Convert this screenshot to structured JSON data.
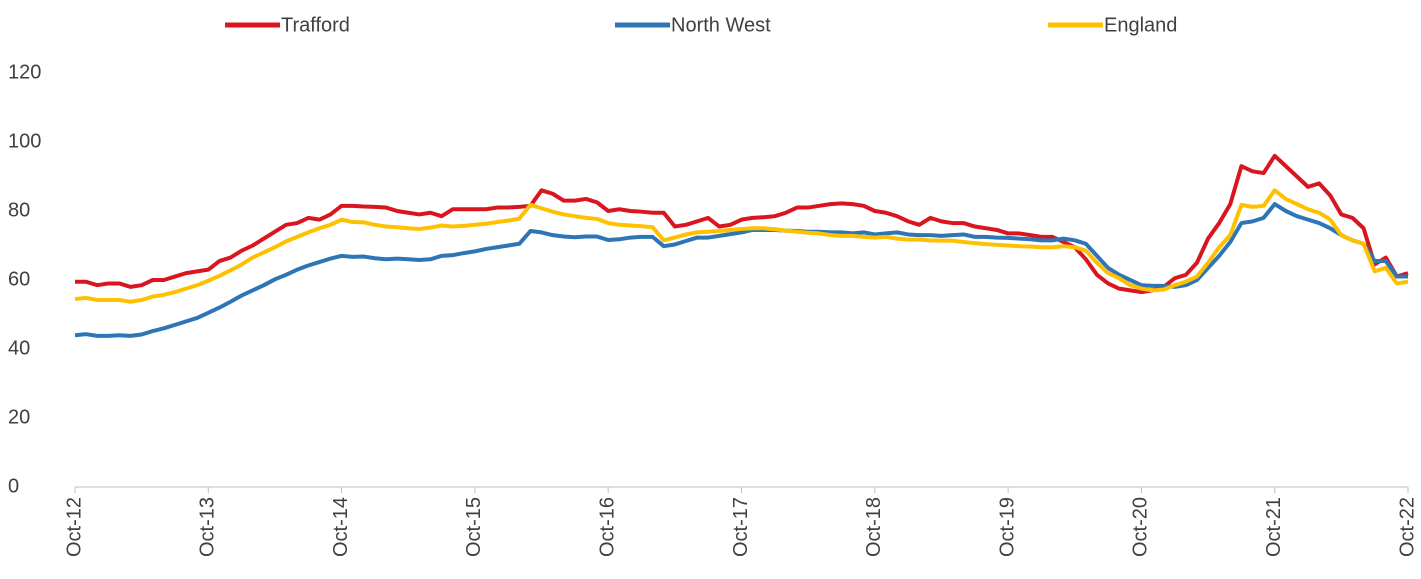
{
  "chart_data": {
    "type": "line",
    "categories": [
      "Oct-12",
      null,
      null,
      null,
      null,
      null,
      null,
      null,
      null,
      null,
      null,
      null,
      "Oct-13",
      null,
      null,
      null,
      null,
      null,
      null,
      null,
      null,
      null,
      null,
      null,
      "Oct-14",
      null,
      null,
      null,
      null,
      null,
      null,
      null,
      null,
      null,
      null,
      null,
      "Oct-15",
      null,
      null,
      null,
      null,
      null,
      null,
      null,
      null,
      null,
      null,
      null,
      "Oct-16",
      null,
      null,
      null,
      null,
      null,
      null,
      null,
      null,
      null,
      null,
      null,
      "Oct-17",
      null,
      null,
      null,
      null,
      null,
      null,
      null,
      null,
      null,
      null,
      null,
      "Oct-18",
      null,
      null,
      null,
      null,
      null,
      null,
      null,
      null,
      null,
      null,
      null,
      "Oct-19",
      null,
      null,
      null,
      null,
      null,
      null,
      null,
      null,
      null,
      null,
      null,
      "Oct-20",
      null,
      null,
      null,
      null,
      null,
      null,
      null,
      null,
      null,
      null,
      null,
      "Oct-21",
      null,
      null,
      null,
      null,
      null,
      null,
      null,
      null,
      null,
      null,
      null,
      "Oct-22"
    ],
    "series": [
      {
        "name": "Trafford",
        "color": "#d9161f",
        "values": [
          59.5,
          59.5,
          58.5,
          59,
          59,
          58,
          58.5,
          60,
          60,
          61,
          62,
          62.5,
          63,
          65.5,
          66.5,
          68.5,
          70,
          72,
          74,
          76,
          76.5,
          78,
          77.5,
          79,
          81.5,
          81.5,
          81.3,
          81.2,
          81,
          80,
          79.5,
          79,
          79.5,
          78.5,
          80.5,
          80.5,
          80.5,
          80.5,
          81,
          81,
          81.2,
          81.5,
          86,
          85,
          83,
          83,
          83.5,
          82.5,
          80,
          80.5,
          80,
          79.8,
          79.5,
          79.5,
          75.5,
          76,
          77,
          78,
          75.5,
          76,
          77.5,
          78,
          78.2,
          78.5,
          79.5,
          81,
          81,
          81.5,
          82,
          82.2,
          82,
          81.5,
          80,
          79.5,
          78.5,
          77,
          76,
          78,
          77,
          76.5,
          76.5,
          75.5,
          75,
          74.5,
          73.5,
          73.5,
          73,
          72.5,
          72.5,
          71,
          69.5,
          66,
          61.5,
          59,
          57.5,
          57,
          56.5,
          57,
          58,
          60.5,
          61.5,
          65,
          72,
          76.5,
          82,
          93,
          91.5,
          91,
          96,
          93,
          90,
          87,
          88,
          84.5,
          79,
          78,
          75,
          64.5,
          66.5,
          61,
          62
        ]
      },
      {
        "name": "North West",
        "color": "#2e75b6",
        "values": [
          44,
          44.3,
          43.8,
          43.8,
          44,
          43.8,
          44.2,
          45.2,
          46,
          47,
          48,
          49,
          50.5,
          52,
          53.7,
          55.5,
          57,
          58.5,
          60.2,
          61.5,
          63,
          64.2,
          65.2,
          66.2,
          67,
          66.7,
          66.8,
          66.3,
          66,
          66.2,
          66,
          65.8,
          66,
          67,
          67.2,
          67.8,
          68.3,
          69,
          69.5,
          70,
          70.5,
          74.2,
          73.8,
          73,
          72.6,
          72.4,
          72.6,
          72.6,
          71.6,
          71.8,
          72.3,
          72.5,
          72.5,
          69.8,
          70.3,
          71.3,
          72.3,
          72.3,
          72.8,
          73.3,
          73.8,
          74.5,
          74.5,
          74.5,
          74.3,
          74.2,
          74,
          74,
          73.8,
          73.8,
          73.5,
          73.8,
          73.2,
          73.5,
          73.8,
          73.2,
          73,
          73,
          72.8,
          73,
          73.2,
          72.5,
          72.5,
          72.3,
          72.2,
          72,
          71.8,
          71.5,
          71.5,
          72,
          71.5,
          70.5,
          67,
          63.5,
          61.5,
          60,
          58.5,
          58.3,
          58.3,
          58,
          58.5,
          60,
          63.5,
          67,
          71,
          76.5,
          77,
          78,
          82,
          80,
          78.5,
          77.5,
          76.5,
          75,
          73,
          71.5,
          70.5,
          65.5,
          65.5,
          61,
          61
        ]
      },
      {
        "name": "England",
        "color": "#ffc000",
        "values": [
          54.5,
          54.8,
          54.2,
          54.2,
          54.2,
          53.7,
          54.2,
          55.2,
          55.7,
          56.5,
          57.5,
          58.5,
          59.8,
          61.2,
          62.8,
          64.5,
          66.5,
          68,
          69.5,
          71.2,
          72.5,
          73.8,
          75,
          76,
          77.5,
          76.8,
          76.7,
          76,
          75.5,
          75.3,
          75,
          74.8,
          75.2,
          75.8,
          75.5,
          75.7,
          76,
          76.3,
          76.8,
          77.2,
          77.8,
          81.8,
          80.8,
          79.8,
          79,
          78.5,
          78,
          77.7,
          76.5,
          76,
          75.8,
          75.6,
          75.3,
          71.5,
          72.3,
          73.2,
          73.8,
          74,
          74.2,
          74.5,
          74.8,
          75,
          75,
          74.7,
          74.3,
          74,
          73.7,
          73.5,
          73,
          72.8,
          72.8,
          72.5,
          72.3,
          72.5,
          72,
          71.7,
          71.7,
          71.5,
          71.4,
          71.4,
          71,
          70.7,
          70.4,
          70.2,
          70,
          69.8,
          69.7,
          69.5,
          69.5,
          69.8,
          69.5,
          68.5,
          65,
          62,
          60.5,
          58.5,
          57.5,
          57,
          57.2,
          58.5,
          59.5,
          61,
          65,
          69.5,
          73,
          81.8,
          81.2,
          81.5,
          86,
          83.5,
          82,
          80.5,
          79.5,
          77.5,
          73,
          71.5,
          70.5,
          62.5,
          63.5,
          59,
          59.5
        ]
      }
    ],
    "ylim": [
      0,
      120
    ],
    "yticks": [
      0,
      20,
      40,
      60,
      80,
      100,
      120
    ],
    "grid": false,
    "legend": "top"
  }
}
